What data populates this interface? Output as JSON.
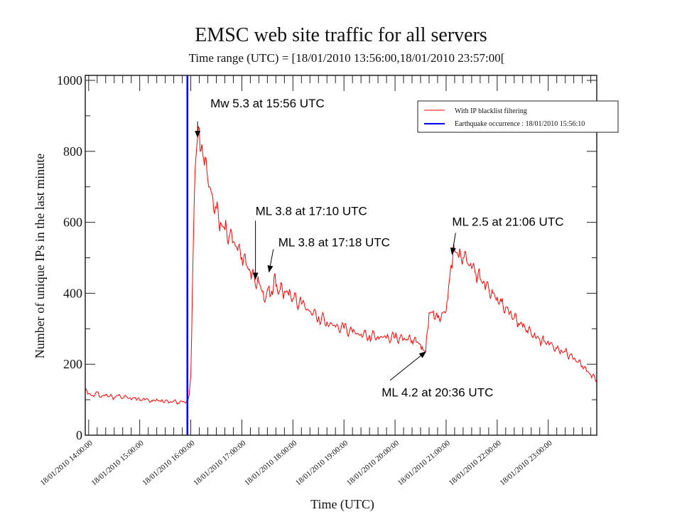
{
  "chart_data": {
    "type": "line",
    "title": "EMSC web site traffic for all servers",
    "subtitle": "Time range (UTC) = [18/01/2010 13:56:00,18/01/2010 23:57:00[",
    "xlabel": "Time (UTC)",
    "ylabel": "Number of unique IPs in the last minute",
    "xlim_minutes_after_14h": [
      -4,
      597
    ],
    "ylim": [
      0,
      1000
    ],
    "yticks": [
      0,
      200,
      400,
      600,
      800,
      1000
    ],
    "xticks": [
      {
        "t": 0,
        "label": "18/01/2010 14:00:00"
      },
      {
        "t": 60,
        "label": "18/01/2010 15:00:00"
      },
      {
        "t": 120,
        "label": "18/01/2010 16:00:00"
      },
      {
        "t": 180,
        "label": "18/01/2010 17:00:00"
      },
      {
        "t": 240,
        "label": "18/01/2010 18:00:00"
      },
      {
        "t": 300,
        "label": "18/01/2010 19:00:00"
      },
      {
        "t": 360,
        "label": "18/01/2010 20:00:00"
      },
      {
        "t": 420,
        "label": "18/01/2010 21:00:00"
      },
      {
        "t": 480,
        "label": "18/01/2010 22:00:00"
      },
      {
        "t": 540,
        "label": "18/01/2010 23:00:00"
      }
    ],
    "legend": {
      "placement": "top-right",
      "entries": [
        {
          "label": "With IP blacklist filtering",
          "color": "#ff0000"
        },
        {
          "label": "Earthquake occurrence :  18/01/2010 15:56:10",
          "color": "#0000ff"
        }
      ]
    },
    "earthquake_t": 116,
    "series": [
      {
        "name": "With IP blacklist filtering",
        "color": "#ff0000",
        "t": [
          -4,
          0,
          5,
          10,
          15,
          20,
          25,
          30,
          35,
          40,
          45,
          50,
          55,
          60,
          65,
          70,
          75,
          80,
          85,
          90,
          95,
          100,
          105,
          110,
          113,
          115,
          116,
          118,
          120,
          122,
          124,
          126,
          128,
          130,
          133,
          136,
          140,
          145,
          150,
          155,
          160,
          165,
          170,
          175,
          180,
          185,
          190,
          195,
          200,
          205,
          208,
          212,
          216,
          218,
          220,
          225,
          230,
          235,
          240,
          250,
          260,
          270,
          280,
          290,
          300,
          310,
          320,
          330,
          340,
          350,
          360,
          365,
          370,
          375,
          380,
          385,
          390,
          393,
          396,
          400,
          405,
          410,
          415,
          420,
          423,
          426,
          430,
          435,
          440,
          445,
          450,
          455,
          460,
          465,
          470,
          475,
          480,
          485,
          490,
          495,
          500,
          505,
          510,
          515,
          520,
          525,
          530,
          535,
          540,
          545,
          550,
          555,
          560,
          565,
          570,
          575,
          580,
          585,
          590,
          597
        ],
        "values": [
          125,
          118,
          112,
          122,
          108,
          115,
          110,
          105,
          112,
          104,
          108,
          100,
          106,
          98,
          104,
          100,
          96,
          102,
          95,
          98,
          92,
          96,
          90,
          94,
          92,
          96,
          100,
          112,
          170,
          420,
          650,
          780,
          840,
          865,
          820,
          760,
          720,
          680,
          640,
          600,
          580,
          560,
          545,
          520,
          500,
          480,
          460,
          440,
          430,
          405,
          385,
          420,
          395,
          450,
          420,
          410,
          405,
          395,
          385,
          370,
          350,
          335,
          320,
          305,
          300,
          290,
          285,
          282,
          278,
          274,
          275,
          272,
          270,
          268,
          266,
          262,
          255,
          240,
          235,
          345,
          350,
          330,
          345,
          350,
          420,
          480,
          520,
          500,
          500,
          485,
          470,
          455,
          440,
          430,
          415,
          400,
          390,
          375,
          360,
          345,
          330,
          315,
          305,
          295,
          285,
          275,
          270,
          265,
          265,
          255,
          245,
          240,
          235,
          225,
          215,
          205,
          195,
          180,
          170,
          155
        ]
      }
    ],
    "annotations": [
      {
        "text": "Mw 5.3 at 15:56 UTC",
        "t": 128,
        "value": 840
      },
      {
        "text": "ML 3.8 at 17:10 UTC",
        "t": 196,
        "value": 440
      },
      {
        "text": "ML 3.8 at 17:18 UTC",
        "t": 212,
        "value": 460
      },
      {
        "text": "ML 2.5 at 21:06 UTC",
        "t": 427,
        "value": 510
      },
      {
        "text": "ML 4.2 at 20:36 UTC",
        "t": 396,
        "value": 235
      }
    ]
  }
}
